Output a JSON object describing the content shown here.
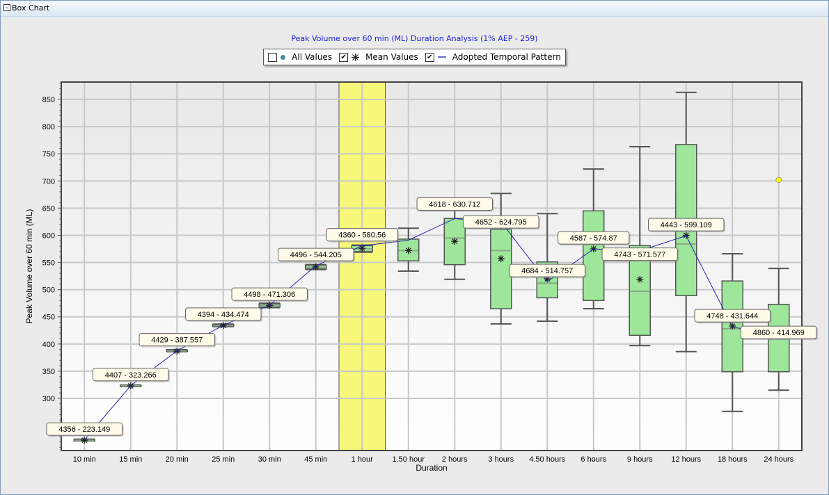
{
  "panel": {
    "title": "Box Chart",
    "collapse_icon": "minus-box-icon"
  },
  "legend": {
    "items": [
      {
        "label": "All Values",
        "checked": false,
        "marker": "circle"
      },
      {
        "label": "Mean Values",
        "checked": true,
        "marker": "asterisk"
      },
      {
        "label": "Adopted Temporal Pattern",
        "checked": true,
        "marker": "line"
      }
    ]
  },
  "chart_data": {
    "type": "box",
    "title": "Peak Volume over 60 min (ML) Duration Analysis (1% AEP - 259)",
    "xlabel": "Duration",
    "ylabel": "Peak Volume over 60 min (ML)",
    "ylim": [
      203,
      882
    ],
    "yticks": [
      300,
      350,
      400,
      450,
      500,
      550,
      600,
      650,
      700,
      750,
      800,
      850
    ],
    "grid": true,
    "legend_placement": "top-center",
    "highlighted_category": "1 hour",
    "colors": {
      "box": "#9de69a",
      "highlight": "#f7f77a",
      "pattern_line": "#2020b0",
      "outlier": "#ffff00",
      "title": "#2020e0"
    },
    "categories": [
      "10 min",
      "15 min",
      "20 min",
      "25 min",
      "30 min",
      "45 min",
      "1 hour",
      "1.50 hour",
      "2 hours",
      "3 hours",
      "4.50 hours",
      "6 hours",
      "9 hours",
      "12 hours",
      "18 hours",
      "24 hours"
    ],
    "boxes": [
      {
        "min": 222,
        "q1": 222.5,
        "median": 223,
        "q3": 224,
        "max": 225,
        "mean": 223
      },
      {
        "min": 322,
        "q1": 322.5,
        "median": 323,
        "q3": 324,
        "max": 324.5,
        "mean": 323
      },
      {
        "min": 386,
        "q1": 386.5,
        "median": 387.5,
        "q3": 389,
        "max": 389.5,
        "mean": 387
      },
      {
        "min": 432,
        "q1": 432.5,
        "median": 434,
        "q3": 436,
        "max": 436.5,
        "mean": 434
      },
      {
        "min": 467,
        "q1": 468,
        "median": 471,
        "q3": 474,
        "max": 475,
        "mean": 471
      },
      {
        "min": 537,
        "q1": 538,
        "median": 541,
        "q3": 545,
        "max": 546,
        "mean": 542
      },
      {
        "min": 569,
        "q1": 570,
        "median": 575,
        "q3": 581,
        "max": 582,
        "mean": 576
      },
      {
        "min": 534,
        "q1": 553,
        "median": 572,
        "q3": 593,
        "max": 613,
        "mean": 572
      },
      {
        "min": 519,
        "q1": 546,
        "median": 595,
        "q3": 631,
        "max": 661,
        "mean": 589
      },
      {
        "min": 437,
        "q1": 465,
        "median": 572,
        "q3": 611,
        "max": 677,
        "mean": 557
      },
      {
        "min": 442,
        "q1": 485,
        "median": 512,
        "q3": 551,
        "max": 640,
        "mean": 520
      },
      {
        "min": 465,
        "q1": 480,
        "median": 583,
        "q3": 645,
        "max": 722,
        "mean": 575
      },
      {
        "min": 397,
        "q1": 416,
        "median": 497,
        "q3": 581,
        "max": 763,
        "mean": 519
      },
      {
        "min": 386,
        "q1": 489,
        "median": 584,
        "q3": 767,
        "max": 863,
        "mean": 600
      },
      {
        "min": 276,
        "q1": 349,
        "median": 428,
        "q3": 516,
        "max": 566,
        "mean": 433
      },
      {
        "min": 315,
        "q1": 349,
        "median": 409,
        "q3": 473,
        "max": 539,
        "mean": 415
      }
    ],
    "outliers": [
      {
        "category": "24 hours",
        "value": 702
      }
    ],
    "adopted_pattern": [
      {
        "category": "10 min",
        "value": 223.149,
        "label": "4356 -  223.149"
      },
      {
        "category": "15 min",
        "value": 323.266,
        "label": "4407 -  323.266"
      },
      {
        "category": "20 min",
        "value": 387.557,
        "label": "4429 -  387.557"
      },
      {
        "category": "25 min",
        "value": 434.474,
        "label": "4394 -  434.474"
      },
      {
        "category": "30 min",
        "value": 471.306,
        "label": "4498 -  471.306"
      },
      {
        "category": "45 min",
        "value": 544.205,
        "label": "4496 -  544.205"
      },
      {
        "category": "1 hour",
        "value": 580.56,
        "label": "4360 -  580.56"
      },
      {
        "category": "1.50 hour",
        "value": 591,
        "label": ""
      },
      {
        "category": "2 hours",
        "value": 630.712,
        "label": "4618 -  630.712"
      },
      {
        "category": "3 hours",
        "value": 624.795,
        "label": "4652 -  624.795"
      },
      {
        "category": "4.50 hours",
        "value": 514.757,
        "label": "4684 -  514.757"
      },
      {
        "category": "6 hours",
        "value": 574.87,
        "label": "4587 -  574.87"
      },
      {
        "category": "9 hours",
        "value": 571.577,
        "label": "4743 -  571.577"
      },
      {
        "category": "12 hours",
        "value": 599.109,
        "label": "4443 -  599.109"
      },
      {
        "category": "18 hours",
        "value": 431.644,
        "label": "4748 -  431.644"
      },
      {
        "category": "24 hours",
        "value": 414.969,
        "label": "4860 -  414.969"
      }
    ]
  }
}
